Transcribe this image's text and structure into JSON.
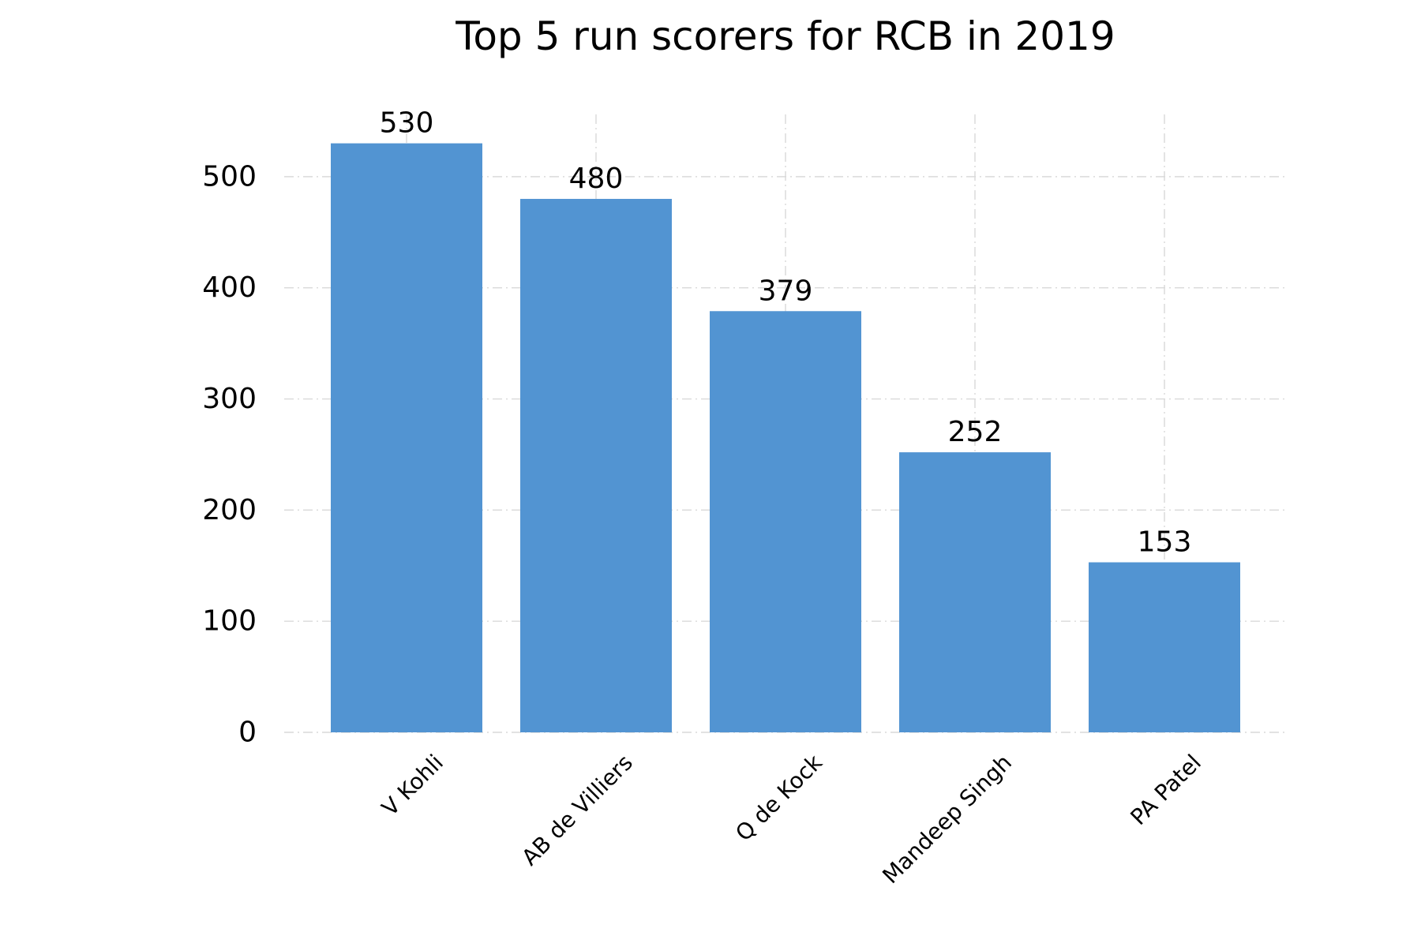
{
  "chart_data": {
    "type": "bar",
    "title": "Top 5 run scorers for RCB in 2019",
    "xlabel": "",
    "ylabel": "",
    "categories": [
      "V Kohli",
      "AB de Villiers",
      "Q de Kock",
      "Mandeep Singh",
      "PA Patel"
    ],
    "values": [
      530,
      480,
      379,
      252,
      153
    ],
    "data_labels": [
      "530",
      "480",
      "379",
      "252",
      "153"
    ],
    "ylim": [
      0,
      556
    ],
    "yticks": [
      0,
      100,
      200,
      300,
      400,
      500
    ],
    "ytick_labels": [
      "0",
      "100",
      "200",
      "300",
      "400",
      "500"
    ],
    "grid": true,
    "legend": "none",
    "bar_color": "#5294d2"
  }
}
